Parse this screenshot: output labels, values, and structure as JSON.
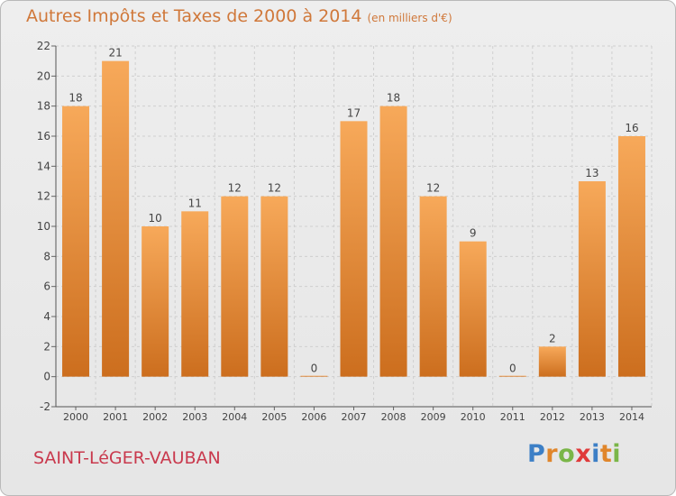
{
  "header": {
    "title": "Autres Impôts et Taxes de 2000 à 2014",
    "unit": "(en milliers d'€)"
  },
  "footer": {
    "town": "SAINT-LéGER-VAUBAN",
    "logo_text": "Proxiti",
    "logo_colors": [
      "#3c7fc6",
      "#e0862b",
      "#7ab648",
      "#e03a3a",
      "#3c7fc6",
      "#e0862b",
      "#7ab648"
    ]
  },
  "chart_data": {
    "type": "bar",
    "title": "Autres Impôts et Taxes de 2000 à 2014",
    "xlabel": "",
    "ylabel": "",
    "categories": [
      "2000",
      "2001",
      "2002",
      "2003",
      "2004",
      "2005",
      "2006",
      "2007",
      "2008",
      "2009",
      "2010",
      "2011",
      "2012",
      "2013",
      "2014"
    ],
    "values": [
      18,
      21,
      10,
      11,
      12,
      12,
      0,
      17,
      18,
      12,
      9,
      0,
      2,
      13,
      16
    ],
    "ylim": [
      -2,
      22
    ],
    "yticks": [
      -2,
      0,
      2,
      4,
      6,
      8,
      10,
      12,
      14,
      16,
      18,
      20,
      22
    ],
    "grid": true,
    "colors": {
      "bar_top": "#f7a95a",
      "bar_bottom": "#cc6e1e",
      "grid": "#cfcfcf",
      "text": "#444444"
    }
  }
}
